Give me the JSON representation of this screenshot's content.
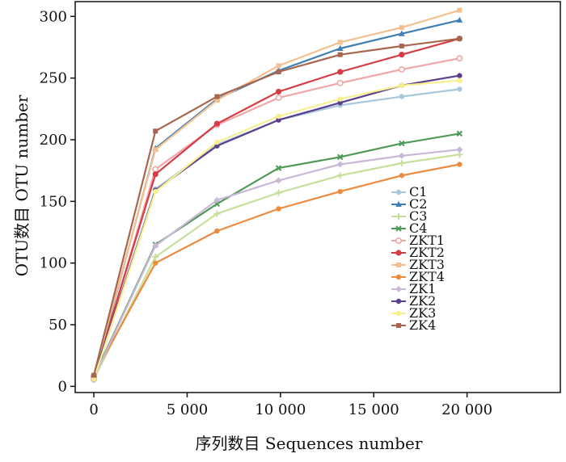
{
  "chart_data": {
    "type": "line",
    "xlabel": "序列数目  Sequences number",
    "ylabel": "OTU数目 OTU number",
    "xlim": [
      -1000,
      25000
    ],
    "ylim": [
      -5,
      312
    ],
    "xticks": [
      {
        "value": 0,
        "label": "0"
      },
      {
        "value": 5000,
        "label": "5 000"
      },
      {
        "value": 10000,
        "label": "10 000"
      },
      {
        "value": 15000,
        "label": "15 000"
      },
      {
        "value": 20000,
        "label": "20 000"
      }
    ],
    "yticks": [
      {
        "value": 0,
        "label": "0"
      },
      {
        "value": 50,
        "label": "50"
      },
      {
        "value": 100,
        "label": "100"
      },
      {
        "value": 150,
        "label": "150"
      },
      {
        "value": 200,
        "label": "200"
      },
      {
        "value": 250,
        "label": "250"
      },
      {
        "value": 300,
        "label": "300"
      }
    ],
    "grid": false,
    "legend_position": "right-center",
    "x": [
      0,
      3300,
      6600,
      9900,
      13200,
      16500,
      19600
    ],
    "series": [
      {
        "name": "C1",
        "color": "#a9c8dc",
        "marker": "circle",
        "values": [
          5,
          160,
          196,
          216,
          228,
          235,
          241
        ]
      },
      {
        "name": "C2",
        "color": "#3f7fb5",
        "marker": "triangle",
        "values": [
          7,
          193,
          233,
          256,
          274,
          286,
          297
        ]
      },
      {
        "name": "C3",
        "color": "#c6df9b",
        "marker": "plus",
        "values": [
          6,
          105,
          140,
          157,
          171,
          181,
          188
        ]
      },
      {
        "name": "C4",
        "color": "#4e9a56",
        "marker": "x",
        "values": [
          8,
          115,
          148,
          177,
          186,
          197,
          205
        ]
      },
      {
        "name": "ZKT1",
        "color": "#f0a7a8",
        "marker": "circle-open",
        "values": [
          6,
          176,
          212,
          234,
          246,
          257,
          266
        ]
      },
      {
        "name": "ZKT2",
        "color": "#d63c44",
        "marker": "heart",
        "values": [
          8,
          172,
          213,
          239,
          255,
          269,
          282
        ]
      },
      {
        "name": "ZKT3",
        "color": "#f4c08f",
        "marker": "square",
        "values": [
          9,
          192,
          232,
          260,
          279,
          291,
          305
        ]
      },
      {
        "name": "ZKT4",
        "color": "#ee8a3e",
        "marker": "circle",
        "values": [
          9,
          100,
          126,
          144,
          158,
          171,
          180
        ]
      },
      {
        "name": "ZK1",
        "color": "#c9b8d7",
        "marker": "diamond",
        "values": [
          7,
          114,
          151,
          167,
          180,
          187,
          192
        ]
      },
      {
        "name": "ZK2",
        "color": "#5b3f8d",
        "marker": "circle",
        "values": [
          8,
          159,
          195,
          216,
          230,
          244,
          252
        ]
      },
      {
        "name": "ZK3",
        "color": "#f7ef8e",
        "marker": "circle",
        "values": [
          6,
          158,
          198,
          219,
          233,
          244,
          248
        ]
      },
      {
        "name": "ZK4",
        "color": "#a8664e",
        "marker": "square",
        "values": [
          9,
          207,
          235,
          255,
          269,
          276,
          282
        ]
      }
    ]
  }
}
